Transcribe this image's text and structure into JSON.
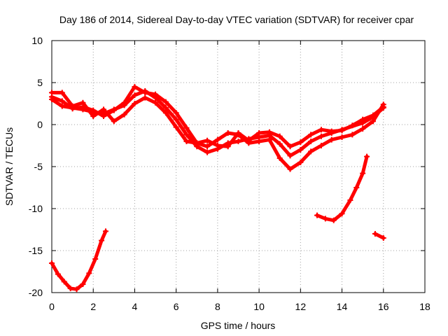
{
  "chart_data": {
    "type": "line",
    "title": "Day 186 of 2014, Sidereal Day-to-day VTEC variation (SDTVAR) for receiver cpar",
    "xlabel": "GPS time / hours",
    "ylabel": "SDTVAR / TECUs",
    "xlim": [
      0,
      18
    ],
    "ylim": [
      -20,
      10
    ],
    "xticks": [
      "0",
      "2",
      "4",
      "6",
      "8",
      "10",
      "12",
      "14",
      "16",
      "18"
    ],
    "yticks": [
      "10",
      "5",
      "0",
      "-5",
      "-10",
      "-15",
      "-20"
    ],
    "grid": true,
    "series": [
      {
        "name": "track-1",
        "color": "#ff0000",
        "points": [
          [
            0,
            3.0
          ],
          [
            0.5,
            2.2
          ],
          [
            1,
            2.0
          ],
          [
            1.5,
            1.8
          ],
          [
            2,
            1.5
          ],
          [
            2.5,
            1.3
          ],
          [
            3,
            1.8
          ],
          [
            3.5,
            2.3
          ],
          [
            4,
            3.5
          ],
          [
            4.5,
            4.0
          ],
          [
            5,
            3.2
          ],
          [
            5.5,
            2.0
          ],
          [
            6,
            0.6
          ],
          [
            6.5,
            -1.2
          ],
          [
            7,
            -2.6
          ],
          [
            7.5,
            -3.3
          ],
          [
            8,
            -2.9
          ],
          [
            8.5,
            -2.2
          ],
          [
            9,
            -2.0
          ],
          [
            9.5,
            -1.7
          ],
          [
            10,
            -1.5
          ],
          [
            10.5,
            -1.3
          ],
          [
            11,
            -2.3
          ],
          [
            11.5,
            -3.7
          ],
          [
            12,
            -3.0
          ],
          [
            12.5,
            -2.0
          ],
          [
            13,
            -1.4
          ],
          [
            13.5,
            -1.0
          ],
          [
            14,
            -0.6
          ],
          [
            15,
            0.2
          ],
          [
            15.5,
            0.9
          ],
          [
            16,
            2.0
          ]
        ]
      },
      {
        "name": "track-2",
        "color": "#ff0000",
        "points": [
          [
            0,
            3.8
          ],
          [
            0.5,
            3.8
          ],
          [
            1,
            2.2
          ],
          [
            1.5,
            2.6
          ],
          [
            2,
            1.0
          ],
          [
            2.5,
            1.8
          ],
          [
            3,
            0.4
          ],
          [
            3.5,
            1.2
          ],
          [
            4,
            2.5
          ],
          [
            4.5,
            3.2
          ],
          [
            5,
            2.6
          ],
          [
            5.5,
            1.4
          ],
          [
            6,
            -0.3
          ],
          [
            6.5,
            -2.0
          ],
          [
            7,
            -2.2
          ],
          [
            7.5,
            -2.6
          ],
          [
            8,
            -1.8
          ],
          [
            8.5,
            -1.0
          ],
          [
            9,
            -1.2
          ],
          [
            9.5,
            -2.2
          ],
          [
            10,
            -2.0
          ],
          [
            10.5,
            -1.8
          ],
          [
            11,
            -4.0
          ],
          [
            11.5,
            -5.3
          ],
          [
            12,
            -4.5
          ],
          [
            12.5,
            -3.2
          ],
          [
            13,
            -2.5
          ],
          [
            13.5,
            -1.8
          ],
          [
            14,
            -1.5
          ],
          [
            14.5,
            -1.2
          ],
          [
            15,
            -0.5
          ],
          [
            15.5,
            0.4
          ],
          [
            16,
            2.4
          ]
        ]
      },
      {
        "name": "track-3",
        "color": "#ff0000",
        "points": [
          [
            0,
            3.3
          ],
          [
            0.5,
            2.8
          ],
          [
            1,
            1.9
          ],
          [
            1.5,
            2.1
          ],
          [
            2,
            1.7
          ],
          [
            2.5,
            1.0
          ],
          [
            3,
            1.7
          ],
          [
            3.5,
            2.6
          ],
          [
            4,
            4.5
          ],
          [
            4.5,
            3.8
          ],
          [
            5,
            3.6
          ],
          [
            5.5,
            2.7
          ],
          [
            6,
            1.4
          ],
          [
            6.5,
            -0.4
          ],
          [
            7,
            -2.2
          ],
          [
            7.5,
            -1.9
          ],
          [
            8,
            -2.5
          ],
          [
            8.5,
            -2.6
          ],
          [
            9,
            -1.0
          ],
          [
            9.5,
            -1.9
          ],
          [
            10,
            -1.0
          ],
          [
            10.5,
            -0.9
          ],
          [
            11,
            -1.4
          ],
          [
            11.5,
            -2.6
          ],
          [
            12,
            -2.1
          ],
          [
            12.5,
            -1.2
          ],
          [
            13,
            -0.6
          ],
          [
            13.5,
            -0.8
          ],
          [
            14,
            -0.7
          ],
          [
            14.5,
            -0.1
          ],
          [
            15,
            0.6
          ],
          [
            15.5,
            1.1
          ],
          [
            16,
            2.1
          ]
        ]
      },
      {
        "name": "segment-a",
        "color": "#ff0000",
        "points": [
          [
            0,
            -16.5
          ],
          [
            0.3,
            -17.8
          ],
          [
            0.6,
            -18.7
          ],
          [
            0.9,
            -19.5
          ],
          [
            1.2,
            -19.6
          ],
          [
            1.5,
            -19.0
          ],
          [
            1.8,
            -17.7
          ],
          [
            2.1,
            -16.0
          ],
          [
            2.4,
            -13.8
          ],
          [
            2.6,
            -12.7
          ]
        ]
      },
      {
        "name": "segment-b",
        "color": "#ff0000",
        "points": [
          [
            12.8,
            -10.8
          ],
          [
            13.2,
            -11.2
          ],
          [
            13.6,
            -11.4
          ],
          [
            14,
            -10.6
          ],
          [
            14.4,
            -9.0
          ],
          [
            14.7,
            -7.5
          ],
          [
            15,
            -5.8
          ],
          [
            15.2,
            -3.8
          ]
        ]
      },
      {
        "name": "segment-c",
        "color": "#ff0000",
        "points": [
          [
            15.6,
            -13.0
          ],
          [
            16,
            -13.5
          ]
        ]
      }
    ]
  }
}
